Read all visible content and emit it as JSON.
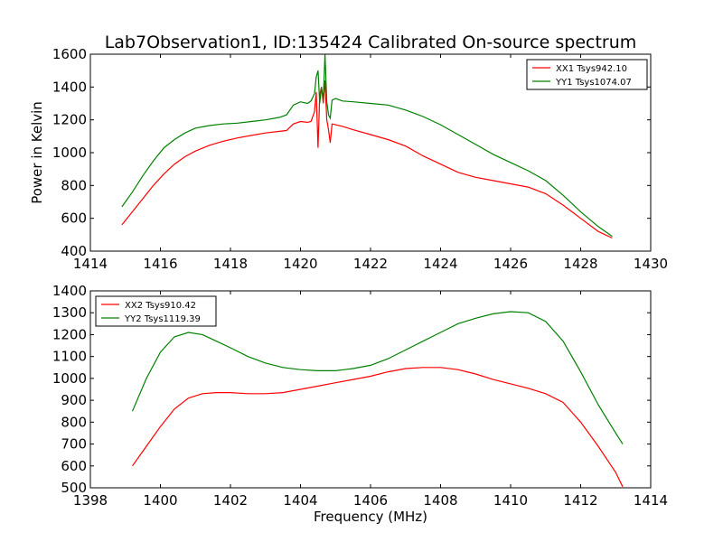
{
  "figure_title": "Lab7Observation1, ID:135424 Calibrated On-source spectrum",
  "chart_data": [
    {
      "type": "line",
      "title": "Lab7Observation1, ID:135424 Calibrated On-source spectrum",
      "xlabel": "",
      "ylabel": "Power in Kelvin",
      "xlim": [
        1414,
        1430
      ],
      "ylim": [
        400,
        1600
      ],
      "xticks": [
        1414,
        1416,
        1418,
        1420,
        1422,
        1424,
        1426,
        1428,
        1430
      ],
      "yticks": [
        400,
        600,
        800,
        1000,
        1200,
        1400,
        1600
      ],
      "grid": false,
      "legend_position": "top-right",
      "series": [
        {
          "name": "XX1 Tsys942.10",
          "color": "#ff0000",
          "x": [
            1414.9,
            1415.2,
            1415.5,
            1415.8,
            1416.1,
            1416.4,
            1416.7,
            1417.0,
            1417.4,
            1417.8,
            1418.2,
            1418.6,
            1419.0,
            1419.4,
            1419.6,
            1419.8,
            1420.0,
            1420.2,
            1420.3,
            1420.4,
            1420.45,
            1420.5,
            1420.55,
            1420.6,
            1420.65,
            1420.7,
            1420.75,
            1420.8,
            1420.85,
            1420.9,
            1421.0,
            1421.2,
            1421.5,
            1422.0,
            1422.5,
            1423.0,
            1423.5,
            1424.0,
            1424.5,
            1425.0,
            1425.5,
            1426.0,
            1426.5,
            1427.0,
            1427.5,
            1428.0,
            1428.5,
            1428.9
          ],
          "y": [
            560,
            640,
            720,
            800,
            870,
            930,
            975,
            1010,
            1045,
            1070,
            1090,
            1105,
            1120,
            1130,
            1135,
            1175,
            1190,
            1185,
            1190,
            1250,
            1370,
            1030,
            1350,
            1400,
            1300,
            1440,
            1200,
            1140,
            1060,
            1175,
            1170,
            1160,
            1140,
            1110,
            1080,
            1040,
            980,
            930,
            880,
            850,
            830,
            810,
            790,
            750,
            680,
            600,
            520,
            480
          ]
        },
        {
          "name": "YY1 Tsys1074.07",
          "color": "#008000",
          "x": [
            1414.9,
            1415.2,
            1415.5,
            1415.8,
            1416.1,
            1416.4,
            1416.7,
            1417.0,
            1417.4,
            1417.8,
            1418.2,
            1418.6,
            1419.0,
            1419.4,
            1419.6,
            1419.8,
            1420.0,
            1420.2,
            1420.3,
            1420.4,
            1420.45,
            1420.5,
            1420.55,
            1420.6,
            1420.65,
            1420.7,
            1420.75,
            1420.8,
            1420.85,
            1420.9,
            1421.0,
            1421.2,
            1421.5,
            1422.0,
            1422.5,
            1423.0,
            1423.5,
            1424.0,
            1424.5,
            1425.0,
            1425.5,
            1426.0,
            1426.5,
            1427.0,
            1427.5,
            1428.0,
            1428.5,
            1428.9
          ],
          "y": [
            670,
            760,
            860,
            950,
            1030,
            1080,
            1120,
            1150,
            1165,
            1175,
            1180,
            1190,
            1200,
            1215,
            1230,
            1290,
            1310,
            1300,
            1315,
            1360,
            1460,
            1500,
            1300,
            1400,
            1320,
            1600,
            1310,
            1230,
            1210,
            1320,
            1330,
            1315,
            1310,
            1300,
            1290,
            1260,
            1220,
            1170,
            1110,
            1050,
            990,
            940,
            890,
            830,
            740,
            640,
            550,
            490
          ]
        }
      ]
    },
    {
      "type": "line",
      "title": "",
      "xlabel": "Frequency (MHz)",
      "ylabel": "",
      "xlim": [
        1398,
        1414
      ],
      "ylim": [
        500,
        1400
      ],
      "xticks": [
        1398,
        1400,
        1402,
        1404,
        1406,
        1408,
        1410,
        1412,
        1414
      ],
      "yticks": [
        500,
        600,
        700,
        800,
        900,
        1000,
        1100,
        1200,
        1300,
        1400
      ],
      "grid": false,
      "legend_position": "top-left",
      "series": [
        {
          "name": "XX2 Tsys910.42",
          "color": "#ff0000",
          "x": [
            1399.2,
            1399.6,
            1400.0,
            1400.4,
            1400.8,
            1401.2,
            1401.6,
            1402.0,
            1402.5,
            1403.0,
            1403.5,
            1404.0,
            1404.5,
            1405.0,
            1405.5,
            1406.0,
            1406.5,
            1407.0,
            1407.5,
            1408.0,
            1408.5,
            1409.0,
            1409.5,
            1410.0,
            1410.5,
            1411.0,
            1411.5,
            1412.0,
            1412.5,
            1413.0,
            1413.2
          ],
          "y": [
            600,
            690,
            780,
            860,
            910,
            930,
            935,
            935,
            930,
            930,
            935,
            950,
            965,
            980,
            995,
            1010,
            1030,
            1045,
            1050,
            1050,
            1040,
            1020,
            995,
            975,
            955,
            930,
            890,
            800,
            690,
            570,
            505
          ]
        },
        {
          "name": "YY2 Tsys1119.39",
          "color": "#008000",
          "x": [
            1399.2,
            1399.6,
            1400.0,
            1400.4,
            1400.8,
            1401.2,
            1401.6,
            1402.0,
            1402.5,
            1403.0,
            1403.5,
            1404.0,
            1404.5,
            1405.0,
            1405.5,
            1406.0,
            1406.5,
            1407.0,
            1407.5,
            1408.0,
            1408.5,
            1409.0,
            1409.5,
            1410.0,
            1410.5,
            1411.0,
            1411.5,
            1412.0,
            1412.5,
            1413.0,
            1413.2
          ],
          "y": [
            850,
            1000,
            1120,
            1190,
            1210,
            1200,
            1170,
            1140,
            1100,
            1070,
            1050,
            1040,
            1035,
            1035,
            1045,
            1060,
            1090,
            1130,
            1170,
            1210,
            1250,
            1275,
            1295,
            1305,
            1300,
            1260,
            1170,
            1030,
            880,
            750,
            700
          ]
        }
      ]
    }
  ]
}
